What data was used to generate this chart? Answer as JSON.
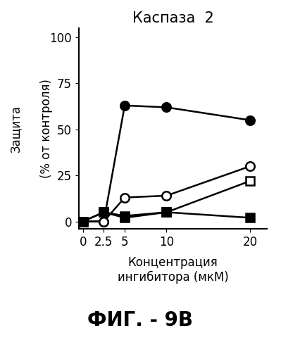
{
  "title": "Каспаза  2",
  "xlabel_line1": "Концентрация",
  "xlabel_line2": "ингибитора (мкМ)",
  "ylabel_outer": "Защита",
  "ylabel_inner": "(% от контроля)",
  "x": [
    0,
    2.5,
    5,
    10,
    20
  ],
  "series": [
    {
      "y": [
        0,
        0,
        63,
        62,
        55
      ],
      "marker": "o",
      "filled": true,
      "color": "black",
      "label": "filled_circle"
    },
    {
      "y": [
        0,
        0,
        13,
        14,
        30
      ],
      "marker": "o",
      "filled": false,
      "color": "black",
      "label": "open_circle"
    },
    {
      "y": [
        0,
        5,
        3,
        5,
        22
      ],
      "marker": "s",
      "filled": false,
      "color": "black",
      "label": "open_square"
    },
    {
      "y": [
        0,
        5,
        2,
        5,
        2
      ],
      "marker": "s",
      "filled": true,
      "color": "black",
      "label": "filled_square"
    }
  ],
  "xlim": [
    -0.5,
    22
  ],
  "ylim": [
    -4,
    105
  ],
  "xticks": [
    0,
    2.5,
    5,
    10,
    20
  ],
  "yticks": [
    0,
    25,
    50,
    75,
    100
  ],
  "fig_width": 3.99,
  "fig_height": 5.0,
  "dpi": 100,
  "title_fontsize": 15,
  "axis_label_fontsize": 12,
  "tick_fontsize": 12,
  "marker_size": 9,
  "linewidth": 1.8,
  "footer_text": "ФИГ. - 9В",
  "footer_fontsize": 20,
  "background_color": "#ffffff"
}
